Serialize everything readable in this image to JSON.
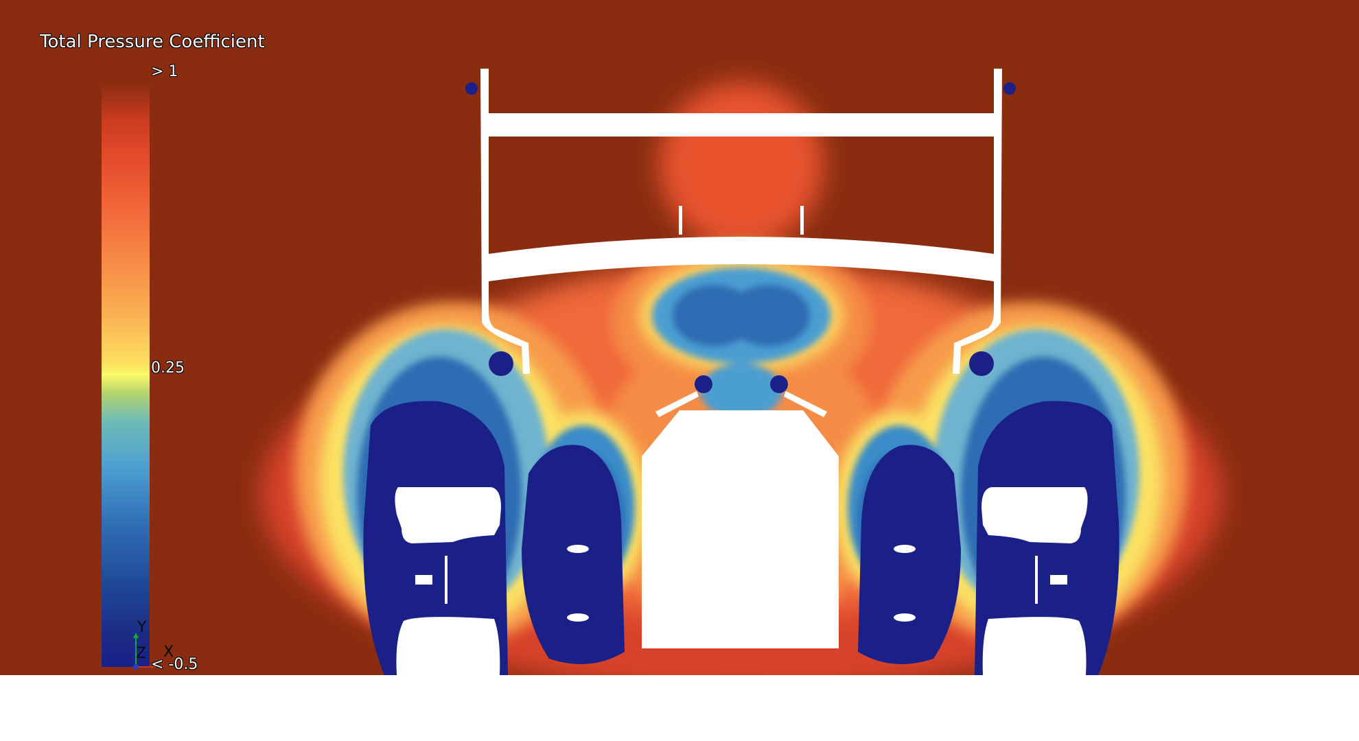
{
  "legend": {
    "title": "Total Pressure Coefficient",
    "max_label": "> 1",
    "mid_label": "0.25",
    "min_label": "< -0.5"
  },
  "axes": {
    "y": "Y",
    "z": "Z",
    "x": "X"
  },
  "colors": {
    "background_field": "#892c10",
    "low": "#1a1f8b",
    "mid": "#fbfb68",
    "high": "#892c10",
    "geometry": "#ffffff"
  }
}
